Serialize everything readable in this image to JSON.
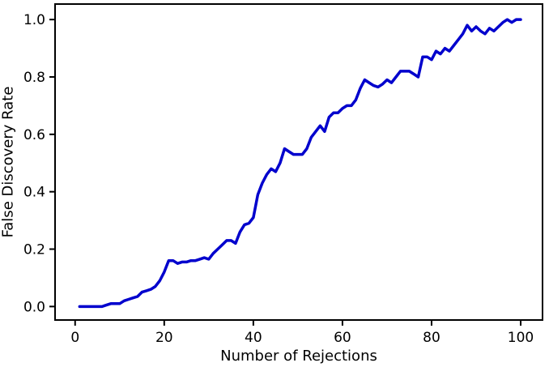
{
  "figure": {
    "background": "#ffffff",
    "spine_color": "#000000",
    "text_color": "#000000",
    "line_color": "#0000cd"
  },
  "chart_data": {
    "type": "line",
    "title": "",
    "xlabel": "Number of Rejections",
    "ylabel": "False Discovery Rate",
    "xlim": [
      -4.5,
      104.9
    ],
    "ylim": [
      -0.047,
      1.054
    ],
    "grid": false,
    "legend": null,
    "x_ticks": [
      {
        "value": 0,
        "label": "0"
      },
      {
        "value": 20,
        "label": "20"
      },
      {
        "value": 40,
        "label": "40"
      },
      {
        "value": 60,
        "label": "60"
      },
      {
        "value": 80,
        "label": "80"
      },
      {
        "value": 100,
        "label": "100"
      }
    ],
    "y_ticks": [
      {
        "value": 0.0,
        "label": "0.0"
      },
      {
        "value": 0.2,
        "label": "0.2"
      },
      {
        "value": 0.4,
        "label": "0.4"
      },
      {
        "value": 0.6,
        "label": "0.6"
      },
      {
        "value": 0.8,
        "label": "0.8"
      },
      {
        "value": 1.0,
        "label": "1.0"
      }
    ],
    "series": [
      {
        "name": "False Discovery Rate",
        "color": "#0000cd",
        "linewidth": 3.5,
        "x": [
          1,
          2,
          3,
          4,
          5,
          6,
          7,
          8,
          9,
          10,
          11,
          12,
          13,
          14,
          15,
          16,
          17,
          18,
          19,
          20,
          21,
          22,
          23,
          24,
          25,
          26,
          27,
          28,
          29,
          30,
          31,
          32,
          33,
          34,
          35,
          36,
          37,
          38,
          39,
          40,
          41,
          42,
          43,
          44,
          45,
          46,
          47,
          48,
          49,
          50,
          51,
          52,
          53,
          54,
          55,
          56,
          57,
          58,
          59,
          60,
          61,
          62,
          63,
          64,
          65,
          66,
          67,
          68,
          69,
          70,
          71,
          72,
          73,
          74,
          75,
          76,
          77,
          78,
          79,
          80,
          81,
          82,
          83,
          84,
          85,
          86,
          87,
          88,
          89,
          90,
          91,
          92,
          93,
          94,
          95,
          96,
          97,
          98,
          99,
          100
        ],
        "y": [
          0.0,
          0.0,
          0.0,
          0.0,
          0.0,
          0.0,
          0.005,
          0.01,
          0.01,
          0.01,
          0.02,
          0.025,
          0.03,
          0.035,
          0.05,
          0.055,
          0.06,
          0.07,
          0.09,
          0.12,
          0.16,
          0.16,
          0.15,
          0.155,
          0.155,
          0.16,
          0.16,
          0.165,
          0.17,
          0.165,
          0.185,
          0.2,
          0.215,
          0.23,
          0.23,
          0.22,
          0.26,
          0.285,
          0.29,
          0.31,
          0.39,
          0.43,
          0.46,
          0.48,
          0.47,
          0.5,
          0.55,
          0.54,
          0.53,
          0.53,
          0.53,
          0.55,
          0.59,
          0.61,
          0.63,
          0.61,
          0.66,
          0.675,
          0.675,
          0.69,
          0.7,
          0.7,
          0.72,
          0.76,
          0.79,
          0.78,
          0.77,
          0.765,
          0.775,
          0.79,
          0.78,
          0.8,
          0.82,
          0.82,
          0.82,
          0.81,
          0.8,
          0.87,
          0.87,
          0.86,
          0.89,
          0.88,
          0.9,
          0.89,
          0.91,
          0.93,
          0.95,
          0.98,
          0.96,
          0.975,
          0.96,
          0.95,
          0.97,
          0.96,
          0.975,
          0.99,
          1.0,
          0.99,
          1.0,
          1.0
        ]
      }
    ]
  }
}
